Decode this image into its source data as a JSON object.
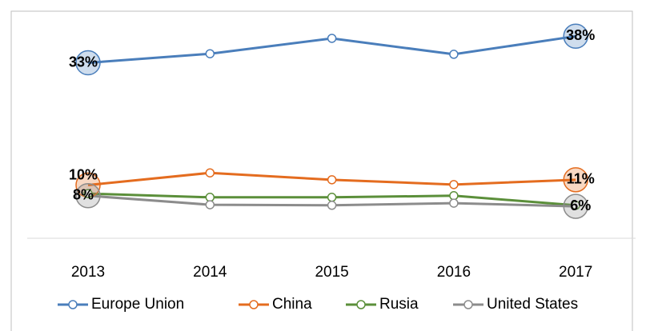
{
  "chart_data": {
    "type": "line",
    "categories": [
      "2013",
      "2014",
      "2015",
      "2016",
      "2017"
    ],
    "ylim": [
      0,
      40
    ],
    "series": [
      {
        "name": "Europe Union",
        "color": "#4a7ebb",
        "values": [
          33,
          34.7,
          37.6,
          34.6,
          38
        ],
        "value_labels": [
          "33%",
          null,
          null,
          null,
          "38%"
        ]
      },
      {
        "name": "China",
        "color": "#e46c1f",
        "values": [
          10,
          12.3,
          11,
          10.1,
          11
        ],
        "value_labels": [
          "10%",
          null,
          null,
          null,
          "11%"
        ]
      },
      {
        "name": "Rusia",
        "color": "#5b8f3a",
        "values": [
          8.4,
          7.7,
          7.7,
          8,
          6.2
        ],
        "value_labels": [
          null,
          null,
          null,
          null,
          null
        ]
      },
      {
        "name": "United States",
        "color": "#8c8c8c",
        "values": [
          8,
          6.3,
          6.2,
          6.6,
          6
        ],
        "value_labels": [
          "8%",
          null,
          null,
          null,
          "6%"
        ]
      }
    ]
  }
}
